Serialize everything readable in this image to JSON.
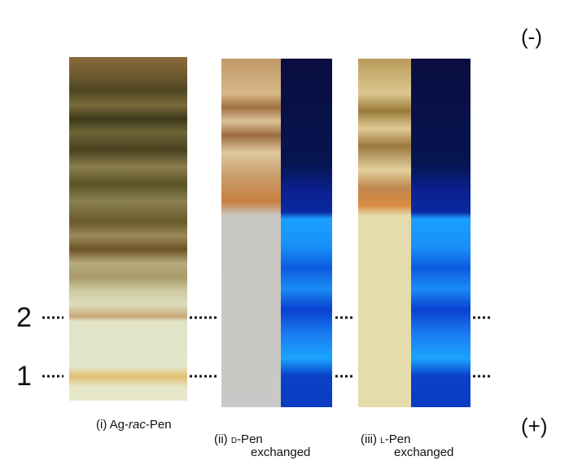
{
  "polarity_top": "(-)",
  "polarity_bottom": "(+)",
  "band_labels": [
    "2",
    "1"
  ],
  "lanes": [
    {
      "number": "(i)",
      "name": [
        "Ag-",
        "rac",
        "-Pen"
      ]
    },
    {
      "number": "(ii)",
      "name": [
        "D",
        "-Pen"
      ],
      "line2": "exchanged"
    },
    {
      "number": "(iii)",
      "name": [
        "L",
        "-Pen"
      ],
      "line2": "exchanged"
    }
  ]
}
